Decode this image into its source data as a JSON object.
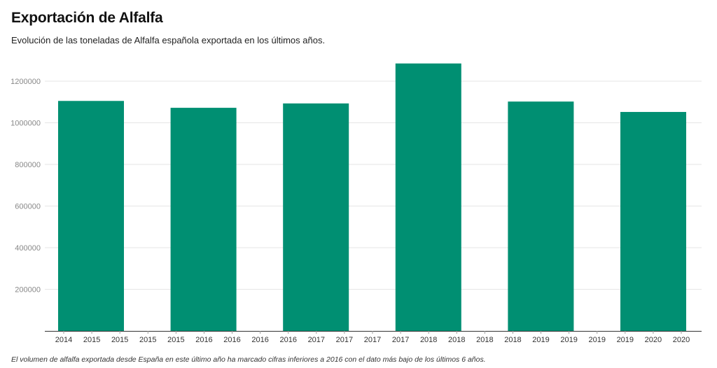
{
  "header": {
    "title": "Exportación de Alfalfa",
    "subtitle": "Evolución de las toneladas de Alfalfa española exportada en los últimos años."
  },
  "footer": {
    "note": "El volumen de alfalfa exportada desde España en este último año ha marcado cifras inferiores a 2016 con el dato más bajo de los últimos 6 años."
  },
  "colors": {
    "bar": "#008f72",
    "grid": "#e6e6e6",
    "axis": "#333333"
  },
  "chart_data": {
    "type": "bar",
    "title": "Exportación de Alfalfa",
    "subtitle": "Evolución de las toneladas de Alfalfa española exportada en los últimos años.",
    "categories": [
      "2015",
      "2016",
      "2017",
      "2018",
      "2019",
      "2020"
    ],
    "values": [
      1105000,
      1072000,
      1093000,
      1285000,
      1102000,
      1052000
    ],
    "x_tick_labels": [
      "2014",
      "2015",
      "2015",
      "2015",
      "2015",
      "2016",
      "2016",
      "2016",
      "2016",
      "2017",
      "2017",
      "2017",
      "2017",
      "2018",
      "2018",
      "2018",
      "2018",
      "2019",
      "2019",
      "2019",
      "2019",
      "2020",
      "2020"
    ],
    "y_ticks": [
      200000,
      400000,
      600000,
      800000,
      1000000,
      1200000
    ],
    "ylim": [
      0,
      1330000
    ],
    "xlabel": "",
    "ylabel": "",
    "grid": true,
    "legend": "none"
  }
}
